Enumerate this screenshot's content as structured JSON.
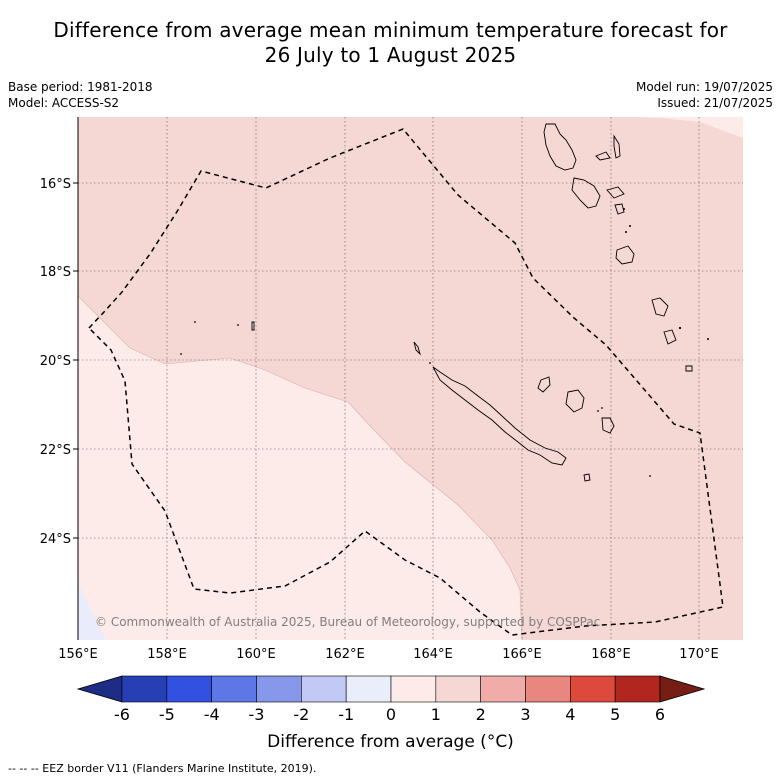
{
  "title_line1": "Difference from average mean minimum temperature forecast for",
  "title_line2": "26 July to 1 August 2025",
  "meta": {
    "base_period": "Base period: 1981-2018",
    "model": "Model: ACCESS-S2",
    "model_run": "Model run: 19/07/2025",
    "issued": "Issued: 21/07/2025"
  },
  "map": {
    "lon_labels": [
      "156°E",
      "158°E",
      "160°E",
      "162°E",
      "164°E",
      "166°E",
      "168°E",
      "170°E"
    ],
    "lat_labels": [
      "16°S",
      "18°S",
      "20°S",
      "22°S",
      "24°S"
    ],
    "copyright": "© Commonwealth of Australia 2025, Bureau of Meteorology, supported by COSPPac",
    "colors": {
      "anomaly_0_1": "#fcebe9",
      "anomaly_1_2": "#f5d7d4",
      "anomaly_neg_1_0": "#e9edfb"
    }
  },
  "colorbar": {
    "ticks": [
      "-6",
      "-5",
      "-4",
      "-3",
      "-2",
      "-1",
      "0",
      "1",
      "2",
      "3",
      "4",
      "5",
      "6"
    ],
    "colors": [
      "#1d2d86",
      "#2540b4",
      "#3251e0",
      "#5c78e6",
      "#8797eb",
      "#c3c9f5",
      "#eaeefb",
      "#fcebe9",
      "#f5d7d4",
      "#efaca8",
      "#e8877f",
      "#dd4a3c",
      "#b1271f",
      "#761e16"
    ],
    "title": "Difference from average (",
    "title_unit": "°C)"
  },
  "footer": "--  --  -- EEZ border V11 (Flanders Marine Institute, 2019)."
}
